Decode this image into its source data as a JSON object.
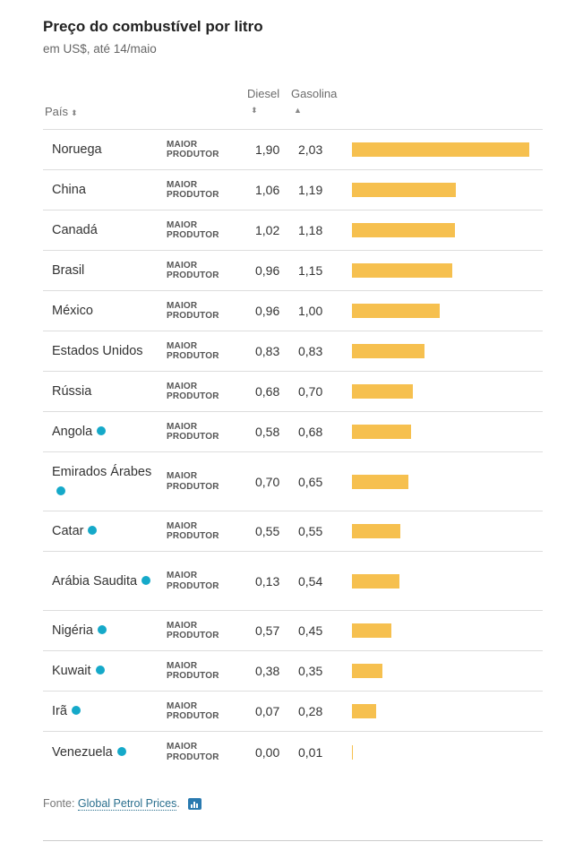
{
  "header": {
    "title": "Preço do combustível por litro",
    "subtitle": "em US$, até 14/maio"
  },
  "columns": {
    "country": "País",
    "diesel": "Diesel",
    "gasoline": "Gasolina",
    "sort_both_icon": "⬍",
    "sort_up_icon": "▲"
  },
  "colors": {
    "bar": "#f6c04f",
    "opec_dot": "#15a9c9"
  },
  "chart_data": {
    "type": "table",
    "columns": [
      "País",
      "Diesel",
      "Gasolina"
    ],
    "bar_column": "Gasolina",
    "bar_range": [
      0,
      2.03
    ],
    "rows": [
      {
        "country": "Noruega",
        "opec": false,
        "producer": [
          "MAIOR",
          "PRODUTOR"
        ],
        "diesel": 1.9,
        "gasoline": 2.03,
        "diesel_label": "1,90",
        "gasoline_label": "2,03"
      },
      {
        "country": "China",
        "opec": false,
        "producer": [
          "MAIOR",
          "PRODUTOR"
        ],
        "diesel": 1.06,
        "gasoline": 1.19,
        "diesel_label": "1,06",
        "gasoline_label": "1,19"
      },
      {
        "country": "Canadá",
        "opec": false,
        "producer": [
          "MAIOR",
          "PRODUTOR"
        ],
        "diesel": 1.02,
        "gasoline": 1.18,
        "diesel_label": "1,02",
        "gasoline_label": "1,18"
      },
      {
        "country": "Brasil",
        "opec": false,
        "producer": [
          "MAIOR",
          "PRODUTOR"
        ],
        "diesel": 0.96,
        "gasoline": 1.15,
        "diesel_label": "0,96",
        "gasoline_label": "1,15"
      },
      {
        "country": "México",
        "opec": false,
        "producer": [
          "MAIOR",
          "PRODUTOR"
        ],
        "diesel": 0.96,
        "gasoline": 1.0,
        "diesel_label": "0,96",
        "gasoline_label": "1,00"
      },
      {
        "country": "Estados Unidos",
        "opec": false,
        "producer": [
          "MAIOR",
          "PRODUTOR"
        ],
        "diesel": 0.83,
        "gasoline": 0.83,
        "diesel_label": "0,83",
        "gasoline_label": "0,83"
      },
      {
        "country": "Rússia",
        "opec": false,
        "producer": [
          "MAIOR",
          "PRODUTOR"
        ],
        "diesel": 0.68,
        "gasoline": 0.7,
        "diesel_label": "0,68",
        "gasoline_label": "0,70"
      },
      {
        "country": "Angola",
        "opec": true,
        "producer": [
          "MAIOR",
          "PRODUTOR"
        ],
        "diesel": 0.58,
        "gasoline": 0.68,
        "diesel_label": "0,58",
        "gasoline_label": "0,68"
      },
      {
        "country": "Emirados Árabes",
        "opec": true,
        "producer": [
          "MAIOR",
          "PRODUTOR"
        ],
        "diesel": 0.7,
        "gasoline": 0.65,
        "diesel_label": "0,70",
        "gasoline_label": "0,65"
      },
      {
        "country": "Catar",
        "opec": true,
        "producer": [
          "MAIOR",
          "PRODUTOR"
        ],
        "diesel": 0.55,
        "gasoline": 0.55,
        "diesel_label": "0,55",
        "gasoline_label": "0,55"
      },
      {
        "country": "Arábia Saudita",
        "opec": true,
        "producer": [
          "MAIOR",
          "PRODUTOR"
        ],
        "diesel": 0.13,
        "gasoline": 0.54,
        "diesel_label": "0,13",
        "gasoline_label": "0,54"
      },
      {
        "country": "Nigéria",
        "opec": true,
        "producer": [
          "MAIOR",
          "PRODUTOR"
        ],
        "diesel": 0.57,
        "gasoline": 0.45,
        "diesel_label": "0,57",
        "gasoline_label": "0,45"
      },
      {
        "country": "Kuwait",
        "opec": true,
        "producer": [
          "MAIOR",
          "PRODUTOR"
        ],
        "diesel": 0.38,
        "gasoline": 0.35,
        "diesel_label": "0,38",
        "gasoline_label": "0,35"
      },
      {
        "country": "Irã",
        "opec": true,
        "producer": [
          "MAIOR",
          "PRODUTOR"
        ],
        "diesel": 0.07,
        "gasoline": 0.28,
        "diesel_label": "0,07",
        "gasoline_label": "0,28"
      },
      {
        "country": "Venezuela",
        "opec": true,
        "producer": [
          "MAIOR",
          "PRODUTOR"
        ],
        "diesel": 0.0,
        "gasoline": 0.01,
        "diesel_label": "0,00",
        "gasoline_label": "0,01"
      }
    ]
  },
  "footer": {
    "source_prefix": "Fonte:",
    "source_link": "Global Petrol Prices",
    "source_suffix": ".",
    "chart_icon": "bar-chart-icon"
  }
}
